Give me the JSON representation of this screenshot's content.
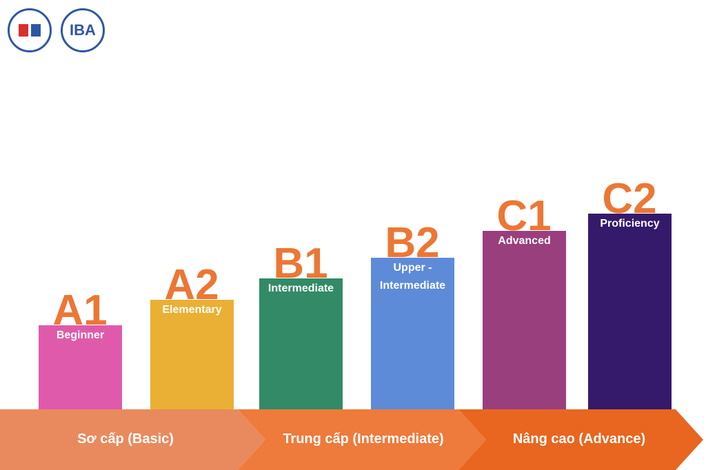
{
  "logos": [
    {
      "text": "IBA"
    }
  ],
  "levels": [
    {
      "code": "A1",
      "label": "Beginner",
      "color": "#e05aab"
    },
    {
      "code": "A2",
      "label": "Elementary",
      "color": "#e9b035"
    },
    {
      "code": "B1",
      "label": "Intermediate",
      "color": "#328a67"
    },
    {
      "code": "B2",
      "label": "Upper - Intermediate",
      "color": "#5e8bd8"
    },
    {
      "code": "C1",
      "label": "Advanced",
      "color": "#9a3f7e"
    },
    {
      "code": "C2",
      "label": "Proficiency",
      "color": "#351a6b"
    }
  ],
  "stages": [
    {
      "label": "Sơ cấp (Basic)"
    },
    {
      "label": "Trung cấp (Intermediate)"
    },
    {
      "label": "Nâng cao (Advance)"
    }
  ]
}
